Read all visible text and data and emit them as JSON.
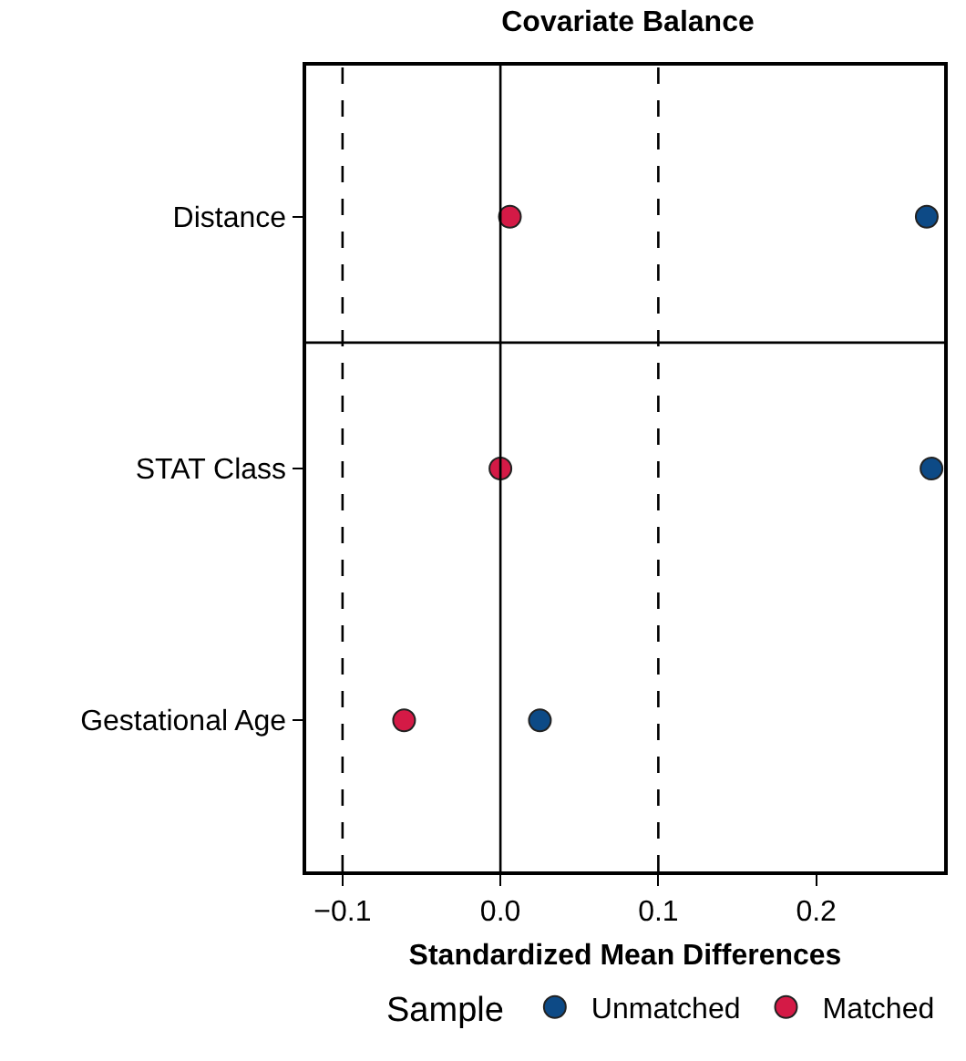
{
  "chart_data": {
    "type": "scatter",
    "title": "Covariate Balance",
    "xlabel": "Standardized Mean Differences",
    "legend_title": "Sample",
    "categories": [
      "Distance",
      "STAT Class",
      "Gestational Age"
    ],
    "series": [
      {
        "name": "Unmatched",
        "color": "#0d4a86",
        "values": [
          0.27,
          0.273,
          0.025
        ]
      },
      {
        "name": "Matched",
        "color": "#d41a46",
        "values": [
          0.006,
          0,
          -0.061
        ]
      }
    ],
    "orientation": "horizontal",
    "xlim": [
      -0.123,
      0.281
    ],
    "xticks": [
      {
        "value": -0.1,
        "label": "−0.1"
      },
      {
        "value": 0,
        "label": "0.0"
      },
      0.1,
      0.2
    ],
    "ref_lines": [
      {
        "axis": "x",
        "value": 0,
        "line_style": "solid"
      },
      {
        "axis": "x",
        "value": -0.1,
        "line_style": "dashed"
      },
      {
        "axis": "x",
        "value": 0.1,
        "line_style": "dashed"
      }
    ],
    "grid": false,
    "legend": "bottom",
    "marker": "circle"
  }
}
